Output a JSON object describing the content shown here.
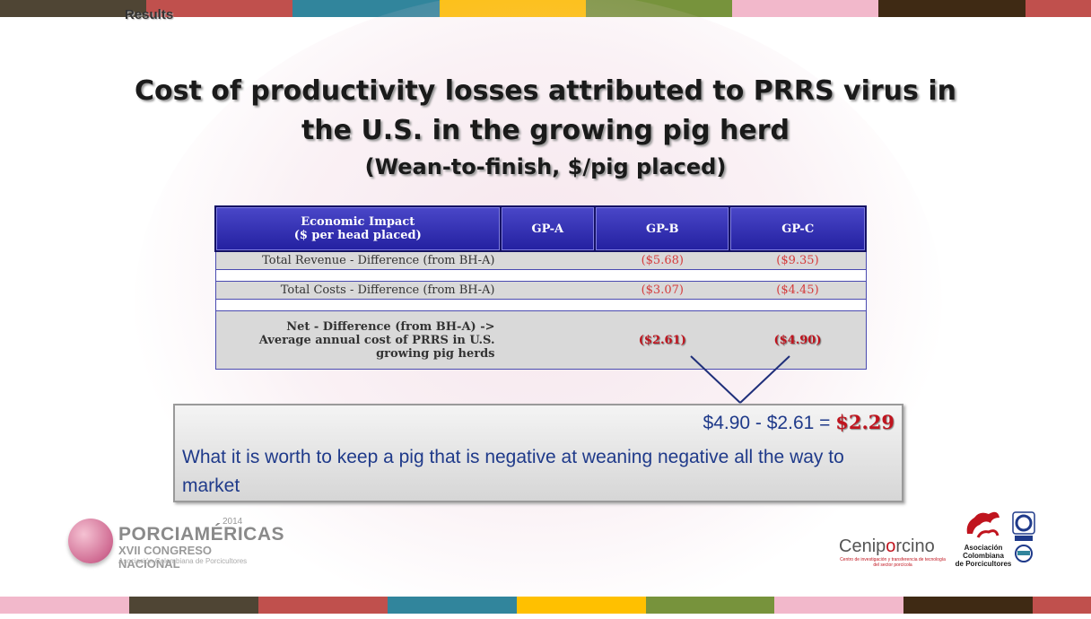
{
  "colors": {
    "stripe": [
      "#4f4534",
      "#c0504d",
      "#31859c",
      "#ffc000",
      "#77933c",
      "#f2b8cb",
      "#3f2a14",
      "#c0504d"
    ],
    "header_blue": "#2b2aa8",
    "negative_red": "#d43c3c",
    "net_red": "#c0141e",
    "text_blue": "#1f3a8a"
  },
  "section_label": "Results",
  "title": {
    "line1": "Cost of productivity losses attributed to PRRS virus in",
    "line2": "the U.S. in the growing pig herd",
    "line3": "(Wean-to-finish, $/pig placed)"
  },
  "table": {
    "headers": {
      "impact_line1": "Economic Impact",
      "impact_line2": "($ per head placed)",
      "gp_a": "GP-A",
      "gp_b": "GP-B",
      "gp_c": "GP-C"
    },
    "rows": [
      {
        "label": "Total Revenue - Difference (from BH-A)",
        "gp_a": "",
        "gp_b": "($5.68)",
        "gp_c": "($9.35)"
      },
      {
        "label": "Total Costs - Difference (from BH-A)",
        "gp_a": "",
        "gp_b": "($3.07)",
        "gp_c": "($4.45)"
      }
    ],
    "net": {
      "line1": "Net - Difference (from BH-A) ->",
      "line2": "Average annual  cost of PRRS in U.S.",
      "line3": "growing pig herds",
      "gp_a": "",
      "gp_b": "($2.61)",
      "gp_c": "($4.90)"
    }
  },
  "callout": {
    "equation": "$4.90 - $2.61 = ",
    "result": "$2.29",
    "description": "What it is worth to keep a pig that is negative at weaning negative all the way to market"
  },
  "logos": {
    "porciamericas_name": "PORCIAMÉRICAS",
    "porciamericas_year": "2014",
    "porciamericas_congress": "XVII CONGRESO NACIONAL",
    "porciamericas_assoc": "Asociación Colombiana de Porcicultores",
    "ceniporcino_a": "Cenip",
    "ceniporcino_o": "o",
    "ceniporcino_b": "rcino",
    "ceniporcino_tag": "Centro de investigación y transferencia de tecnología del sector porcícola",
    "acp_line1": "Asociación",
    "acp_line2": "Colombiana",
    "acp_line3": "de Porcicultores"
  }
}
